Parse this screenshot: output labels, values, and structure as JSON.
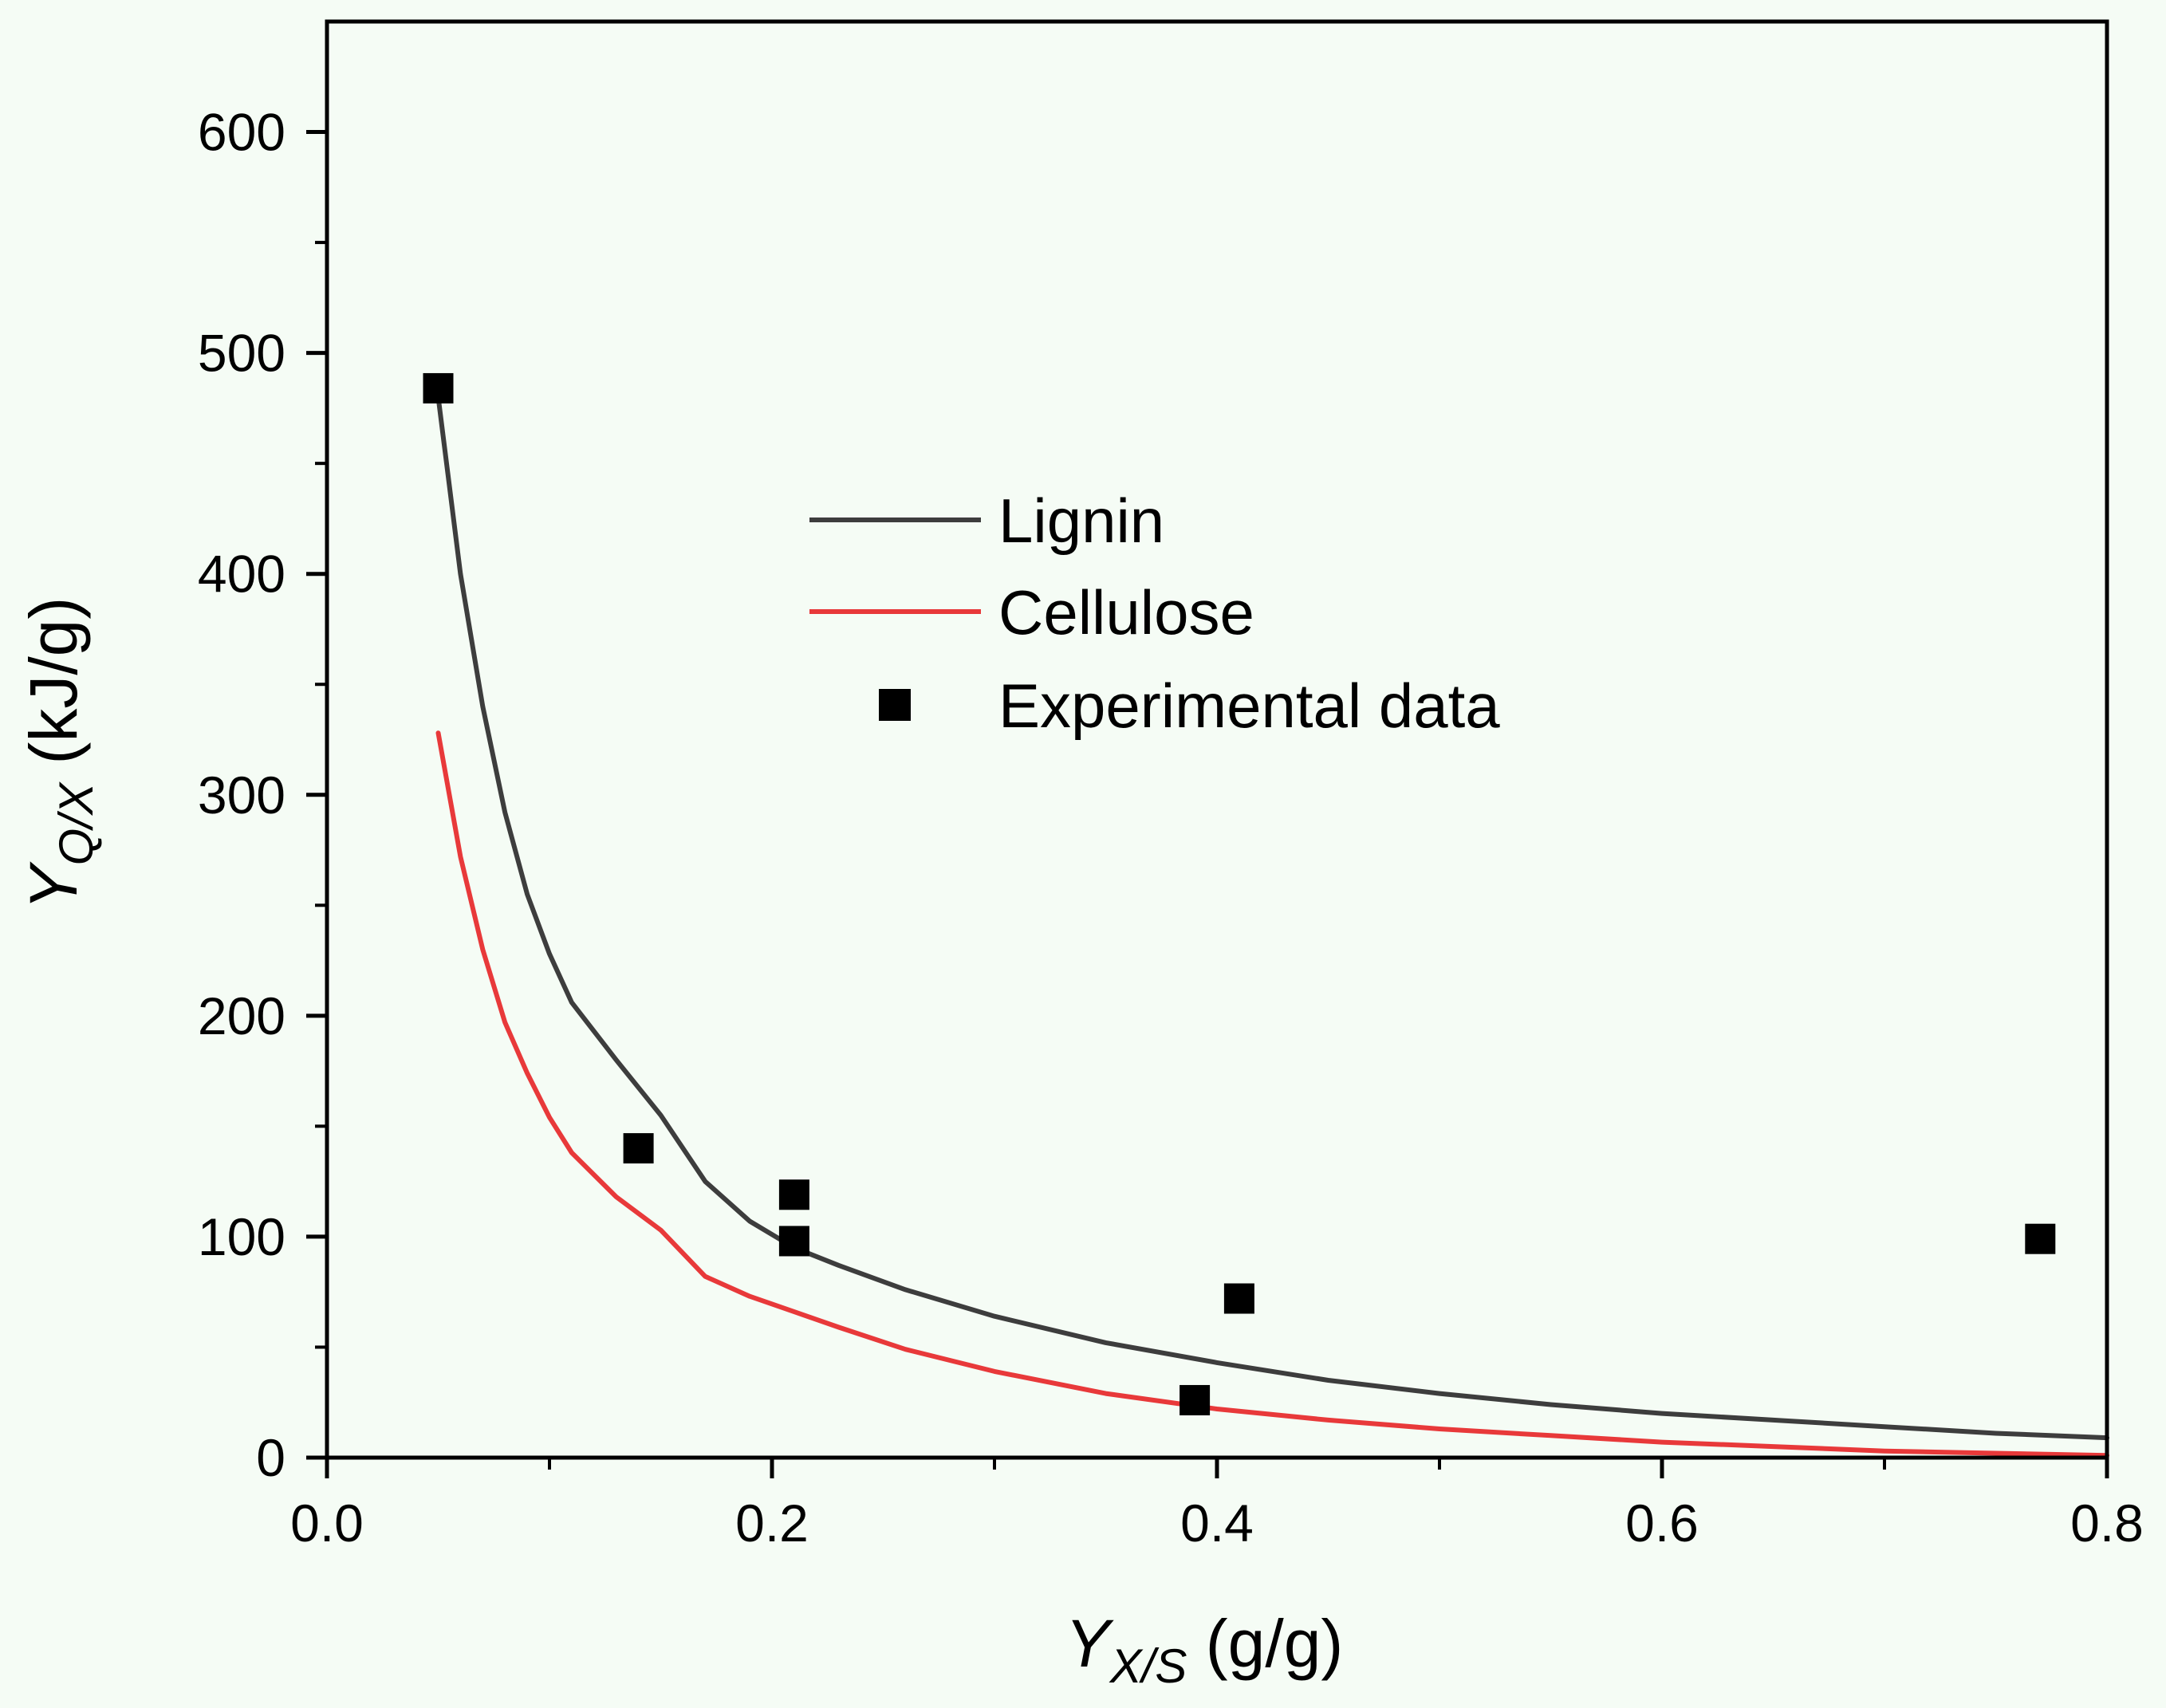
{
  "chart_data": {
    "type": "line",
    "xlabel": {
      "main": "Y",
      "sub": "X/S",
      "unit": " (g/g)"
    },
    "ylabel": {
      "main": "Y",
      "sub": "Q/X",
      "unit": " (kJ/g)"
    },
    "xlim": [
      0,
      0.8
    ],
    "ylim": [
      0,
      650
    ],
    "xticks": [
      0.0,
      0.2,
      0.4,
      0.6,
      0.8
    ],
    "xtick_labels": [
      "0.0",
      "0.2",
      "0.4",
      "0.6",
      "0.8"
    ],
    "yticks": [
      0,
      100,
      200,
      300,
      400,
      500,
      600
    ],
    "ytick_labels": [
      "0",
      "100",
      "200",
      "300",
      "400",
      "500",
      "600"
    ],
    "grid": false,
    "legend_position": "center",
    "series": [
      {
        "name": "Lignin",
        "kind": "line",
        "color": "#3d3d3d",
        "x": [
          0.05,
          0.06,
          0.07,
          0.08,
          0.09,
          0.1,
          0.11,
          0.13,
          0.15,
          0.17,
          0.19,
          0.21,
          0.23,
          0.26,
          0.3,
          0.35,
          0.4,
          0.45,
          0.5,
          0.55,
          0.6,
          0.65,
          0.7,
          0.75,
          0.8
        ],
        "y": [
          480,
          400,
          340,
          292,
          255,
          228,
          206,
          180,
          155,
          125,
          107,
          95,
          87,
          76,
          64,
          52,
          43,
          35,
          29,
          24,
          20,
          17,
          14,
          11,
          9
        ]
      },
      {
        "name": "Cellulose",
        "kind": "line",
        "color": "#e8393a",
        "x": [
          0.05,
          0.06,
          0.07,
          0.08,
          0.09,
          0.1,
          0.11,
          0.13,
          0.15,
          0.17,
          0.19,
          0.21,
          0.23,
          0.26,
          0.3,
          0.35,
          0.4,
          0.45,
          0.5,
          0.55,
          0.6,
          0.65,
          0.7,
          0.75,
          0.8
        ],
        "y": [
          328,
          272,
          230,
          197,
          174,
          154,
          138,
          118,
          103,
          82,
          73,
          66,
          59,
          49,
          39,
          29,
          22,
          17,
          13,
          10,
          7,
          5,
          3,
          2,
          1
        ]
      },
      {
        "name": "Experimental data",
        "kind": "scatter",
        "color": "#000000",
        "x": [
          0.05,
          0.14,
          0.21,
          0.21,
          0.39,
          0.41,
          0.77
        ],
        "y": [
          484,
          140,
          119,
          98,
          26,
          72,
          99
        ]
      }
    ]
  }
}
